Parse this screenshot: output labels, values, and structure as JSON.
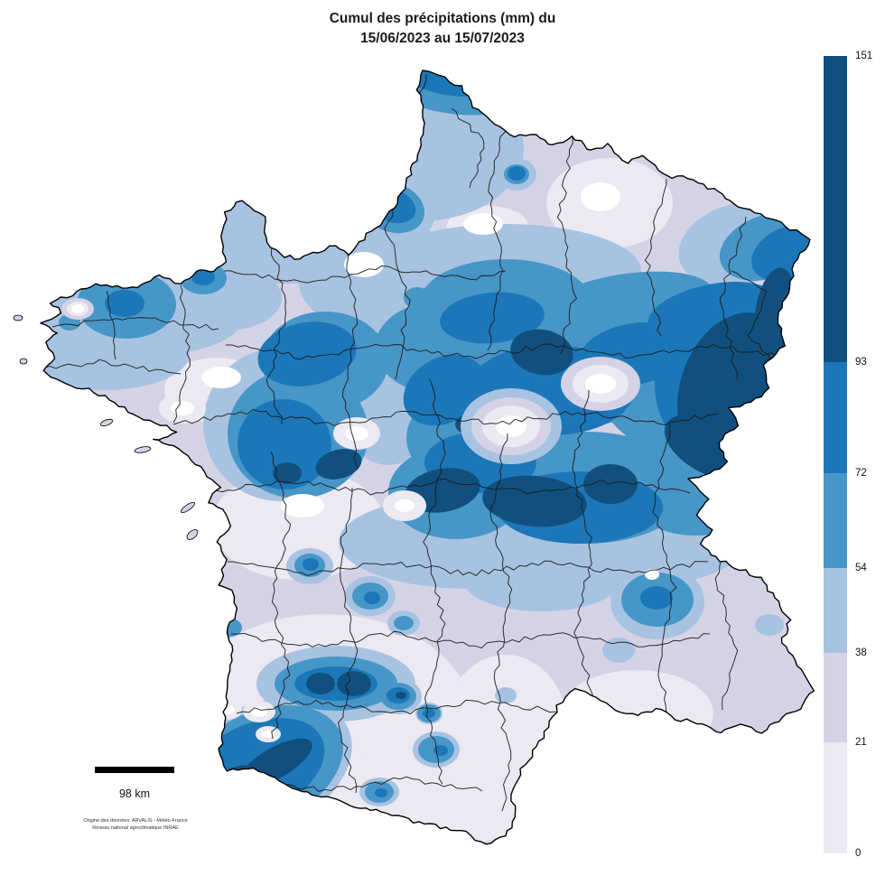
{
  "title": {
    "line1": "Cumul des précipitations (mm) du",
    "line2": "15/06/2023 au 15/07/2023"
  },
  "legend": {
    "max": 151,
    "breaks": [
      151,
      93,
      72,
      54,
      38,
      21,
      0
    ],
    "segment_colors": [
      "#11507e",
      "#1c77b9",
      "#4796c8",
      "#a8c3e1",
      "#d4d3e6",
      "#ece9f2"
    ],
    "label_color": "#111111"
  },
  "map": {
    "white": "#ffffff",
    "sea_color": "#ffffff",
    "coast_color": "#000000",
    "border_color": "#1c1c1c"
  },
  "scale_bar": {
    "label": "98 km",
    "color": "#000000"
  },
  "attribution": {
    "line1": "Origine des données: ARVALIS - Météo-France",
    "line2": "Réseau national agroclimatique INRAE"
  }
}
